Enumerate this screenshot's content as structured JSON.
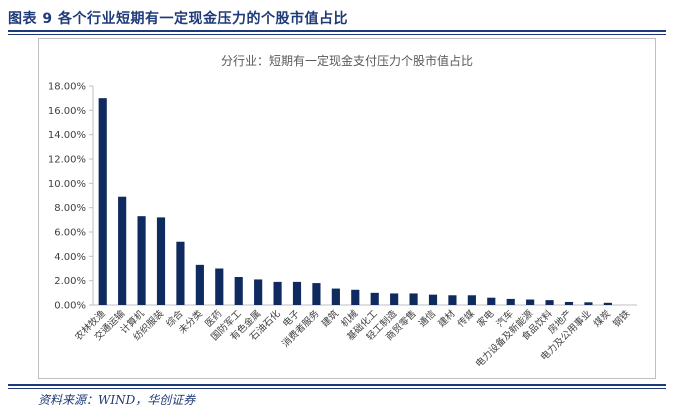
{
  "figure": {
    "title": "图表 9   各个行业短期有一定现金压力的个股市值占比",
    "source": "资料来源：WIND，华创证券"
  },
  "colors": {
    "bar": "#0f2a5e",
    "accent": "#1f3a78",
    "axis": "#bfbfbf",
    "text": "#404040"
  },
  "chart_data": {
    "type": "bar",
    "title": "分行业：短期有一定现金支付压力个股市值占比",
    "xlabel": "",
    "ylabel": "",
    "ylim": [
      0,
      18
    ],
    "yticks": [
      "0.00%",
      "2.00%",
      "4.00%",
      "6.00%",
      "8.00%",
      "10.00%",
      "12.00%",
      "14.00%",
      "16.00%",
      "18.00%"
    ],
    "categories": [
      "农林牧渔",
      "交通运输",
      "计算机",
      "纺织服装",
      "综合",
      "未分类",
      "医药",
      "国防军工",
      "有色金属",
      "石油石化",
      "电子",
      "消费者服务",
      "建筑",
      "机械",
      "基础化工",
      "轻工制造",
      "商贸零售",
      "通信",
      "建材",
      "传媒",
      "家电",
      "汽车",
      "电力设备及新能源",
      "食品饮料",
      "房地产",
      "电力及公用事业",
      "煤炭",
      "钢铁"
    ],
    "values": [
      17.0,
      8.9,
      7.3,
      7.2,
      5.2,
      3.3,
      3.0,
      2.3,
      2.1,
      1.9,
      1.9,
      1.8,
      1.35,
      1.25,
      1.0,
      0.95,
      0.95,
      0.85,
      0.8,
      0.8,
      0.6,
      0.5,
      0.45,
      0.4,
      0.25,
      0.22,
      0.18,
      0.0
    ],
    "grid": false,
    "legend": "none"
  }
}
